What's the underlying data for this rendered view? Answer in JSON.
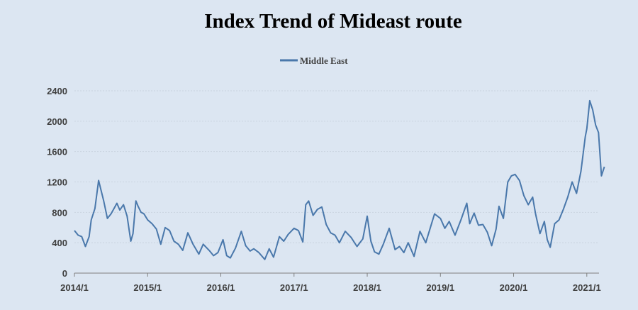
{
  "chart_data": {
    "type": "line",
    "title": "Index Trend of Mideast route",
    "xlabel": "",
    "ylabel": "",
    "legend": {
      "position": "top-center",
      "entries": [
        "Middle East"
      ]
    },
    "grid": {
      "horizontal": true,
      "vertical": false
    },
    "ylim": [
      0,
      2400
    ],
    "yticks": [
      0,
      400,
      800,
      1200,
      1600,
      2000,
      2400
    ],
    "xlim": [
      "2014-01",
      "2021-03"
    ],
    "xticks": [
      "2014/1",
      "2015/1",
      "2016/1",
      "2017/1",
      "2018/1",
      "2019/1",
      "2020/1",
      "2021/1"
    ],
    "colors": {
      "series": "#4a78ab",
      "background": "#dce6f2",
      "axis": "#7f7f7f",
      "grid": "#c9d3df"
    },
    "series": [
      {
        "name": "Middle East",
        "x": [
          2014.0,
          2014.05,
          2014.1,
          2014.15,
          2014.2,
          2014.23,
          2014.28,
          2014.33,
          2014.4,
          2014.45,
          2014.5,
          2014.54,
          2014.58,
          2014.62,
          2014.67,
          2014.72,
          2014.77,
          2014.8,
          2014.84,
          2014.87,
          2014.91,
          2014.95,
          2015.0,
          2015.06,
          2015.12,
          2015.18,
          2015.24,
          2015.3,
          2015.36,
          2015.42,
          2015.48,
          2015.55,
          2015.62,
          2015.7,
          2015.76,
          2015.84,
          2015.9,
          2015.96,
          2016.03,
          2016.08,
          2016.13,
          2016.2,
          2016.28,
          2016.34,
          2016.4,
          2016.45,
          2016.52,
          2016.6,
          2016.66,
          2016.72,
          2016.8,
          2016.86,
          2016.92,
          2017.0,
          2017.06,
          2017.12,
          2017.16,
          2017.2,
          2017.26,
          2017.32,
          2017.38,
          2017.44,
          2017.5,
          2017.56,
          2017.62,
          2017.7,
          2017.78,
          2017.86,
          2017.94,
          2018.0,
          2018.05,
          2018.1,
          2018.16,
          2018.22,
          2018.3,
          2018.38,
          2018.44,
          2018.5,
          2018.56,
          2018.64,
          2018.72,
          2018.8,
          2018.86,
          2018.92,
          2019.0,
          2019.06,
          2019.12,
          2019.2,
          2019.28,
          2019.36,
          2019.4,
          2019.46,
          2019.52,
          2019.58,
          2019.64,
          2019.7,
          2019.76,
          2019.8,
          2019.86,
          2019.92,
          2019.97,
          2020.02,
          2020.08,
          2020.14,
          2020.2,
          2020.26,
          2020.3,
          2020.36,
          2020.42,
          2020.46,
          2020.5,
          2020.56,
          2020.62,
          2020.68,
          2020.74,
          2020.8,
          2020.86,
          2020.92,
          2020.98,
          2021.0,
          2021.04,
          2021.08,
          2021.12,
          2021.16,
          2021.2,
          2021.24
        ],
        "values": [
          560,
          500,
          480,
          350,
          480,
          700,
          850,
          1220,
          950,
          720,
          780,
          850,
          920,
          830,
          900,
          750,
          420,
          520,
          950,
          880,
          800,
          780,
          700,
          650,
          580,
          380,
          600,
          560,
          420,
          380,
          300,
          530,
          380,
          250,
          380,
          300,
          230,
          270,
          440,
          230,
          200,
          330,
          550,
          360,
          290,
          320,
          270,
          180,
          320,
          210,
          480,
          420,
          510,
          590,
          560,
          410,
          900,
          950,
          760,
          840,
          870,
          640,
          530,
          500,
          400,
          550,
          470,
          350,
          450,
          750,
          420,
          280,
          250,
          380,
          590,
          310,
          350,
          270,
          400,
          220,
          550,
          400,
          590,
          780,
          720,
          590,
          680,
          500,
          700,
          920,
          650,
          790,
          630,
          640,
          540,
          360,
          580,
          880,
          720,
          1200,
          1280,
          1300,
          1220,
          1020,
          900,
          1000,
          780,
          520,
          680,
          440,
          340,
          650,
          700,
          840,
          1000,
          1200,
          1050,
          1340,
          1800,
          1900,
          2270,
          2150,
          1950,
          1850,
          1280,
          1400
        ]
      }
    ]
  }
}
